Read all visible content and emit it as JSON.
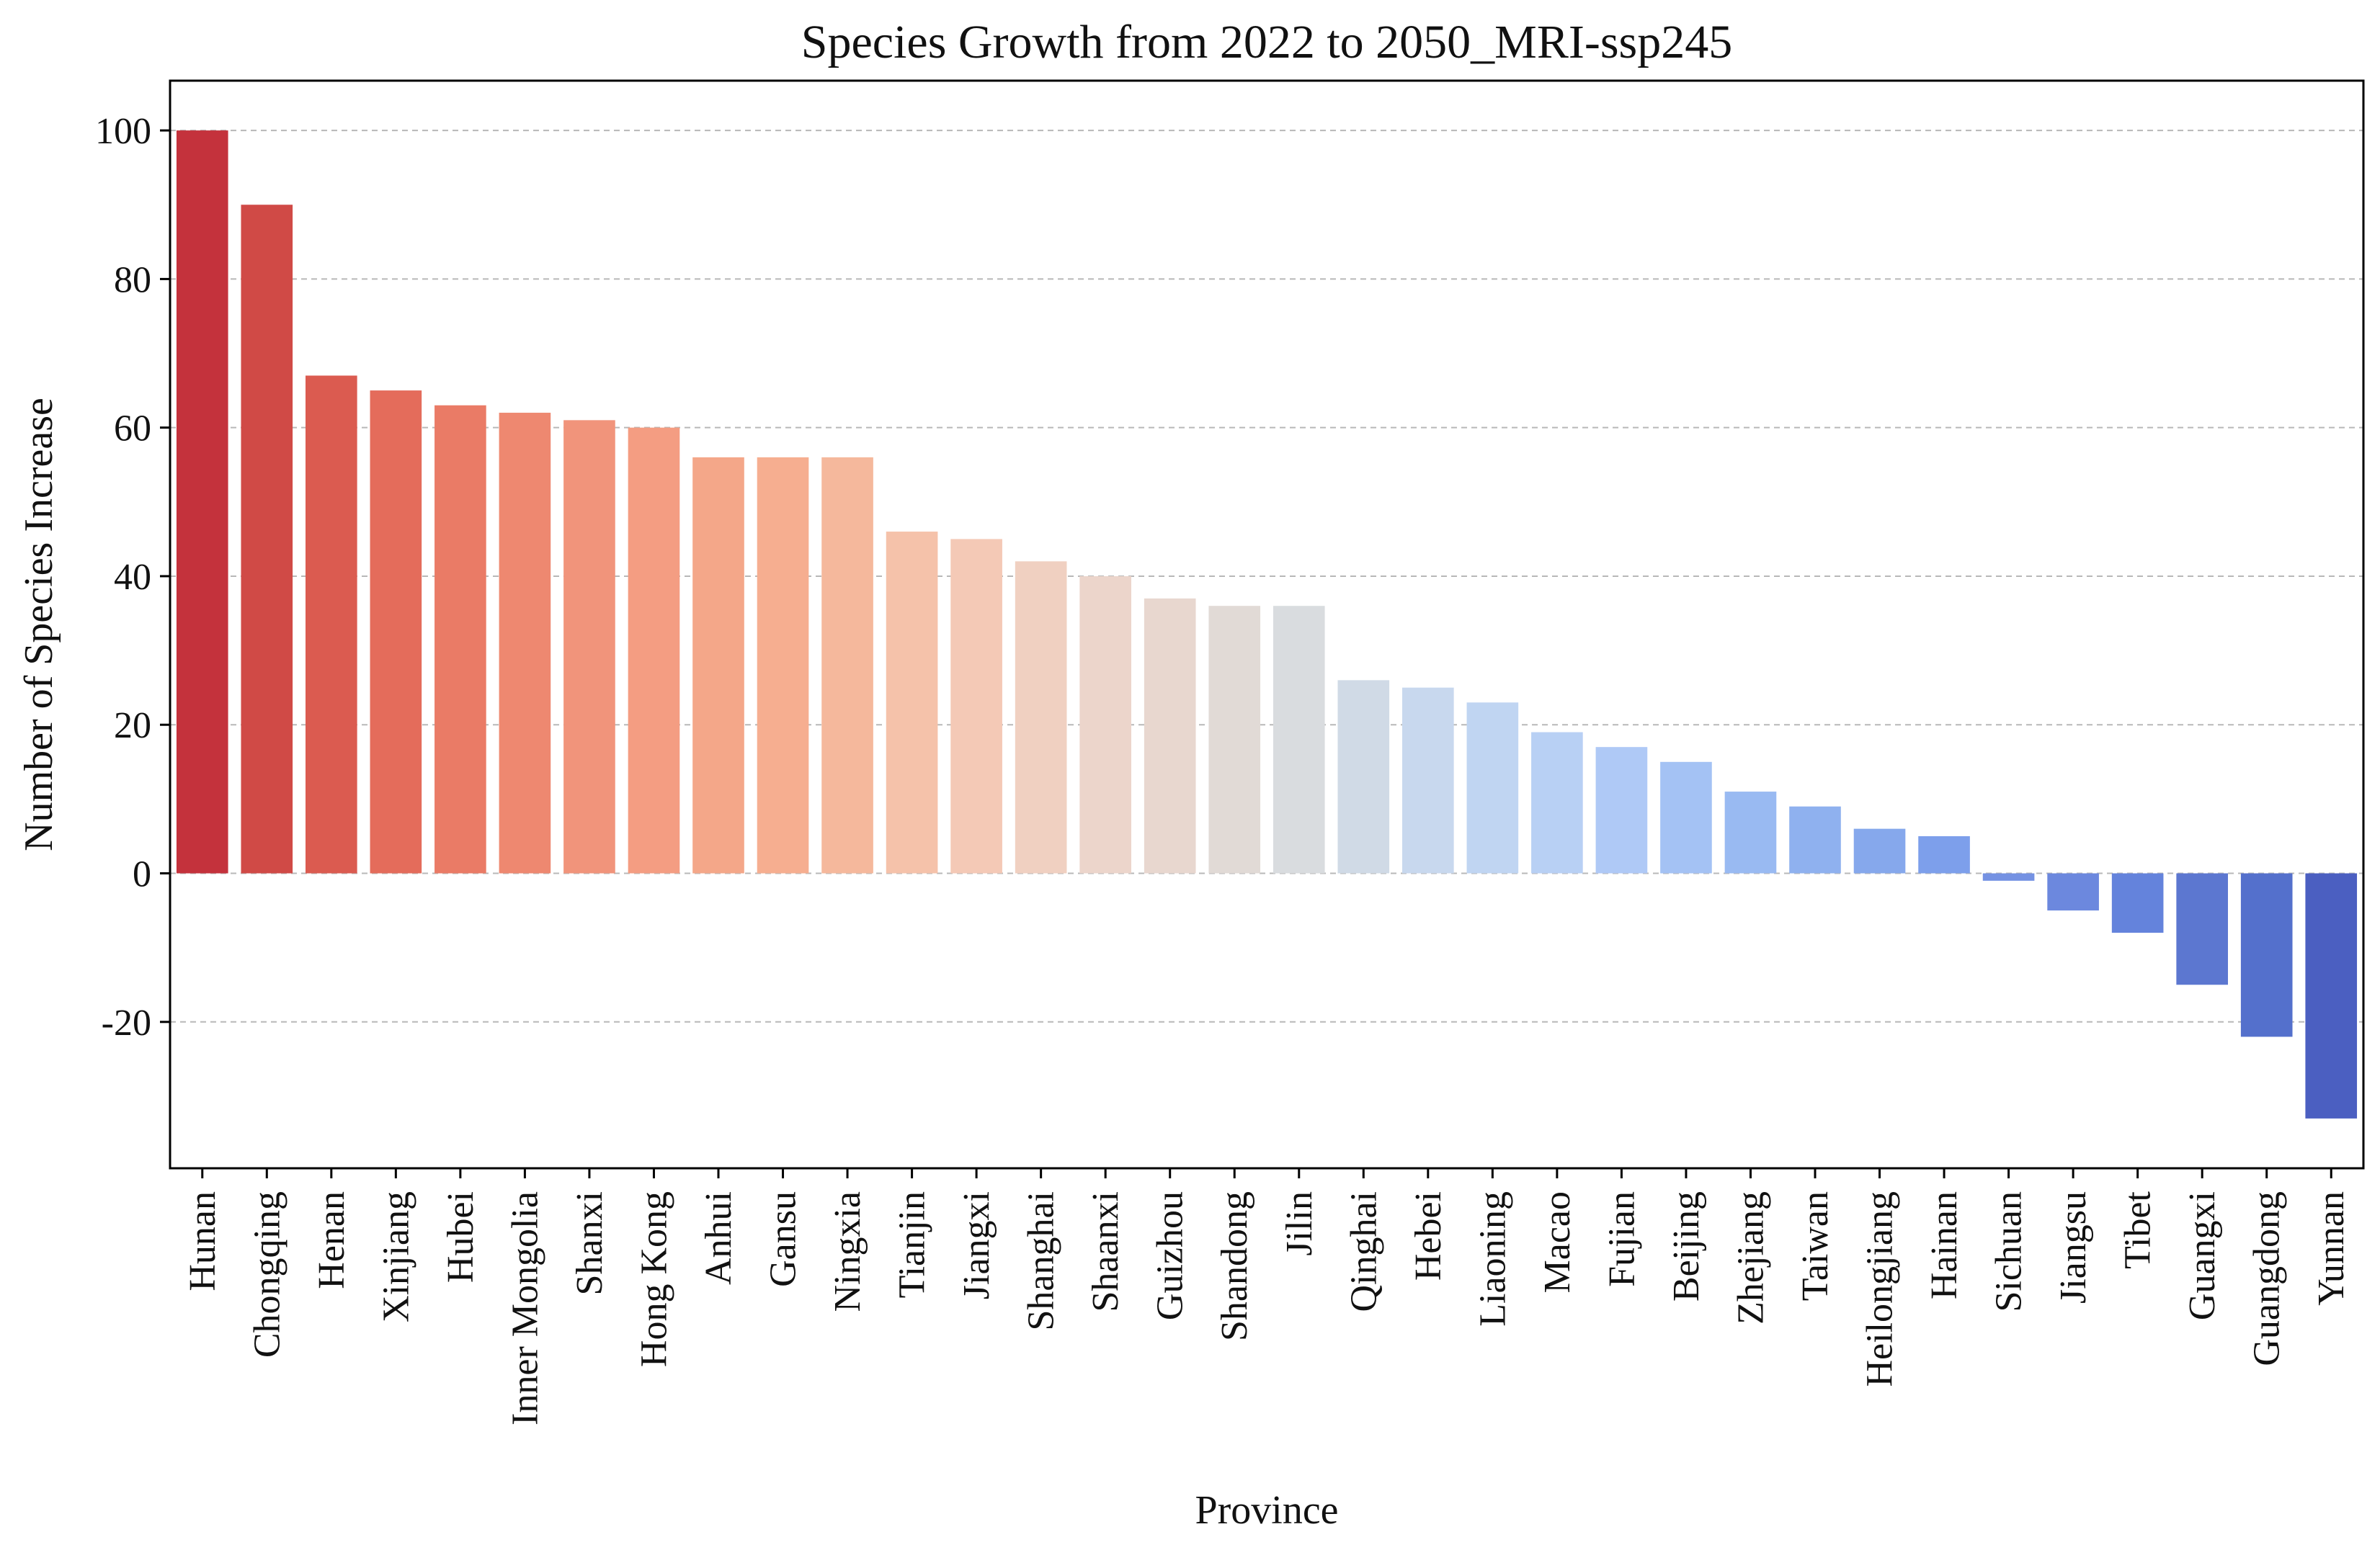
{
  "chart_data": {
    "type": "bar",
    "title": "Species Growth from 2022 to 2050_MRI-ssp245",
    "xlabel": "Province",
    "ylabel": "Number of Species Increase",
    "ylim": [
      -39.7,
      106.7
    ],
    "yticks": [
      -20,
      0,
      20,
      40,
      60,
      80,
      100
    ],
    "grid": "horizontal dashed",
    "categories": [
      "Hunan",
      "Chongqing",
      "Henan",
      "Xinjiang",
      "Hubei",
      "Inner Mongolia",
      "Shanxi",
      "Hong Kong",
      "Anhui",
      "Gansu",
      "Ningxia",
      "Tianjin",
      "Jiangxi",
      "Shanghai",
      "Shaanxi",
      "Guizhou",
      "Shandong",
      "Jilin",
      "Qinghai",
      "Hebei",
      "Liaoning",
      "Macao",
      "Fujian",
      "Beijing",
      "Zhejiang",
      "Taiwan",
      "Heilongjiang",
      "Hainan",
      "Sichuan",
      "Jiangsu",
      "Tibet",
      "Guangxi",
      "Guangdong",
      "Yunnan"
    ],
    "values": [
      100,
      90,
      67,
      65,
      63,
      62,
      61,
      60,
      56,
      56,
      56,
      46,
      45,
      42,
      40,
      37,
      36,
      36,
      26,
      25,
      23,
      19,
      17,
      15,
      11,
      9,
      6,
      5,
      -1,
      -5,
      -8,
      -15,
      -22,
      -33
    ],
    "colors": [
      "#c4323c",
      "#d04a46",
      "#db5b50",
      "#e46c5b",
      "#ea7b66",
      "#ee8870",
      "#f1947b",
      "#f49d82",
      "#f4a789",
      "#f6ae90",
      "#f5b89c",
      "#f5c2aa",
      "#f4c9b6",
      "#f0d0c1",
      "#ecd5cb",
      "#e8d7cf",
      "#e1dad6",
      "#d9dcdf",
      "#d0dae6",
      "#c8d8ee",
      "#c0d5f2",
      "#b8d0f4",
      "#afc9f6",
      "#a4c2f4",
      "#99baf2",
      "#8fb1ef",
      "#86a8ec",
      "#7d9feb",
      "#7592e3",
      "#6c88de",
      "#6483dc",
      "#5c77d0",
      "#5470cc",
      "#4b5fc1"
    ]
  }
}
